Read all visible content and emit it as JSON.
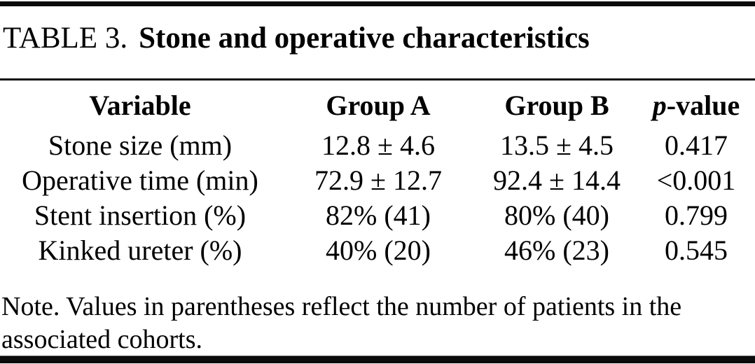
{
  "title": {
    "label": "TABLE 3.",
    "text": "Stone and operative characteristics"
  },
  "table": {
    "columns": {
      "variable": "Variable",
      "group_a": "Group A",
      "group_b": "Group B",
      "p_italic": "p",
      "p_rest": "-value"
    },
    "rows": [
      {
        "variable": "Stone size (mm)",
        "group_a": "12.8 ± 4.6",
        "group_b": "13.5 ± 4.5",
        "p_value": "0.417"
      },
      {
        "variable": "Operative time (min)",
        "group_a": "72.9 ± 12.7",
        "group_b": "92.4 ± 14.4",
        "p_value": "<0.001"
      },
      {
        "variable": "Stent insertion (%)",
        "group_a": "82% (41)",
        "group_b": "80% (40)",
        "p_value": "0.799"
      },
      {
        "variable": "Kinked ureter (%)",
        "group_a": "40% (20)",
        "group_b": "46% (23)",
        "p_value": "0.545"
      }
    ]
  },
  "note": {
    "lines": [
      "Note. Values in parentheses reflect the number of patients in the",
      "associated cohorts."
    ]
  },
  "colors": {
    "text": "#000000",
    "background": "#ffffff",
    "rule": "#0b0b0b"
  }
}
